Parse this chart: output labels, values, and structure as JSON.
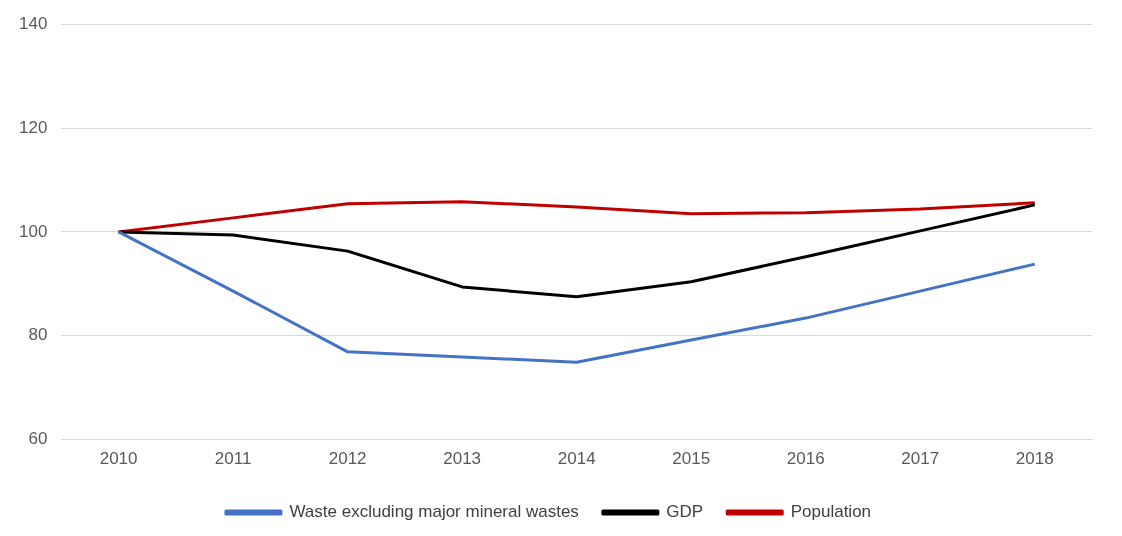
{
  "chart_data": {
    "type": "line",
    "categories": [
      "2010",
      "2011",
      "2012",
      "2013",
      "2014",
      "2015",
      "2016",
      "2017",
      "2018"
    ],
    "series": [
      {
        "name": "Waste excluding major mineral wastes",
        "color": "#4472c4",
        "values": [
          100,
          88.6,
          76.9,
          75.9,
          74.9,
          79.2,
          83.4,
          88.6,
          93.8
        ]
      },
      {
        "name": "GDP",
        "color": "#000000",
        "values": [
          100,
          99.4,
          96.3,
          89.4,
          87.5,
          90.4,
          95.2,
          100.2,
          105.2
        ]
      },
      {
        "name": "Population",
        "color": "#c00000",
        "values": [
          100,
          102.7,
          105.4,
          105.8,
          104.8,
          103.5,
          103.7,
          104.4,
          105.6
        ]
      }
    ],
    "ylim": [
      60,
      140
    ],
    "yticks": [
      60,
      80,
      100,
      120,
      140
    ],
    "grid": "y",
    "legend": "bottom",
    "marker": "none",
    "line_style": "solid"
  }
}
